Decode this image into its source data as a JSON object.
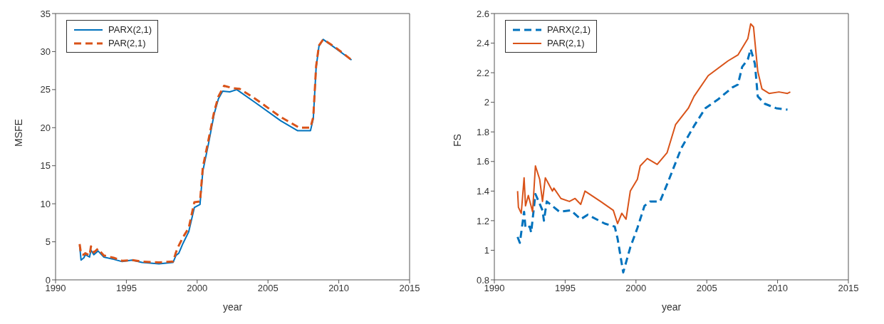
{
  "chart_data": [
    {
      "type": "line",
      "xlabel": "year",
      "ylabel": "MSFE",
      "xlim": [
        1990,
        2015
      ],
      "xticks": [
        1990,
        1995,
        2000,
        2005,
        2010,
        2015
      ],
      "ylim": [
        0,
        35
      ],
      "yticks": [
        0,
        5,
        10,
        15,
        20,
        25,
        30,
        35
      ],
      "legend": "top left",
      "series": [
        {
          "name": "PARX(2,1)",
          "color": "#0072bd",
          "line_style": "solid",
          "x": [
            1991.7,
            1991.8,
            1992.0,
            1992.1,
            1992.4,
            1992.5,
            1992.7,
            1993.0,
            1993.4,
            1994.1,
            1994.7,
            1995.4,
            1996.1,
            1997.3,
            1998.3,
            1998.5,
            1998.7,
            1999.0,
            1999.4,
            1999.8,
            2000.2,
            2000.4,
            2000.8,
            2001.2,
            2001.5,
            2001.8,
            2002.3,
            2002.8,
            2004.1,
            2005.9,
            2007.1,
            2008.0,
            2008.2,
            2008.4,
            2008.6,
            2008.9,
            2009.8,
            2010.9
          ],
          "values": [
            4.5,
            2.6,
            2.9,
            3.3,
            3.0,
            3.9,
            3.3,
            3.8,
            3.0,
            2.7,
            2.4,
            2.6,
            2.3,
            2.1,
            2.3,
            3.2,
            3.5,
            4.8,
            6.3,
            9.5,
            9.9,
            14.3,
            17.9,
            21.8,
            23.8,
            24.8,
            24.7,
            25.0,
            23.3,
            20.9,
            19.6,
            19.6,
            21.2,
            27.9,
            30.7,
            31.6,
            30.4,
            28.9
          ]
        },
        {
          "name": "PAR(2,1)",
          "color": "#d95319",
          "line_style": "dashed",
          "x": [
            1991.7,
            1991.8,
            1992.0,
            1992.1,
            1992.4,
            1992.5,
            1992.7,
            1993.0,
            1993.4,
            1994.1,
            1994.7,
            1995.4,
            1996.1,
            1997.3,
            1998.3,
            1998.5,
            1998.7,
            1999.0,
            1999.4,
            1999.8,
            2000.2,
            2000.4,
            2000.8,
            2001.2,
            2001.5,
            2001.9,
            2002.5,
            2003.0,
            2004.1,
            2005.9,
            2007.2,
            2008.0,
            2008.2,
            2008.4,
            2008.6,
            2008.9,
            2009.8,
            2010.9
          ],
          "values": [
            4.7,
            3.4,
            3.3,
            3.5,
            3.2,
            4.4,
            3.6,
            4.1,
            3.2,
            2.9,
            2.5,
            2.6,
            2.4,
            2.3,
            2.4,
            3.6,
            4.5,
            5.6,
            6.8,
            10.2,
            10.3,
            14.8,
            18.4,
            22.1,
            24.1,
            25.5,
            25.2,
            25.1,
            23.8,
            21.4,
            20.0,
            20.0,
            21.4,
            28.1,
            30.8,
            31.6,
            30.5,
            28.9
          ]
        }
      ]
    },
    {
      "type": "line",
      "xlabel": "year",
      "ylabel": "FS",
      "xlim": [
        1990,
        2015
      ],
      "xticks": [
        1990,
        1995,
        2000,
        2005,
        2010,
        2015
      ],
      "ylim": [
        0.8,
        2.6
      ],
      "yticks": [
        0.8,
        1,
        1.2,
        1.4,
        1.6,
        1.8,
        2,
        2.2,
        2.4,
        2.6
      ],
      "legend": "top left",
      "series": [
        {
          "name": "PARX(2,1)",
          "color": "#0072bd",
          "line_style": "dashed",
          "x": [
            1991.64,
            1991.8,
            1992.1,
            1992.2,
            1992.5,
            1992.6,
            1992.9,
            1993.4,
            1993.5,
            1993.7,
            1994.6,
            1995.4,
            1996.1,
            1996.6,
            1997.8,
            1998.5,
            1998.7,
            1999.1,
            1999.6,
            2000.1,
            2000.6,
            2001.0,
            2001.7,
            2002.3,
            2003.2,
            2004.1,
            2004.9,
            2005.8,
            2006.8,
            2007.2,
            2007.5,
            2007.9,
            2008.1,
            2008.4,
            2008.6,
            2009.1,
            2009.9,
            2010.7
          ],
          "values": [
            1.09,
            1.05,
            1.26,
            1.15,
            1.16,
            1.12,
            1.38,
            1.27,
            1.2,
            1.33,
            1.26,
            1.27,
            1.21,
            1.24,
            1.18,
            1.16,
            1.08,
            0.85,
            1.02,
            1.15,
            1.3,
            1.33,
            1.33,
            1.47,
            1.69,
            1.84,
            1.96,
            2.02,
            2.1,
            2.12,
            2.24,
            2.29,
            2.36,
            2.26,
            2.04,
            1.99,
            1.96,
            1.95
          ]
        },
        {
          "name": "PAR(2,1)",
          "color": "#d95319",
          "line_style": "solid",
          "x": [
            1991.64,
            1991.7,
            1991.9,
            1992.1,
            1992.2,
            1992.4,
            1992.7,
            1992.9,
            1993.2,
            1993.4,
            1993.6,
            1994.1,
            1994.2,
            1994.7,
            1995.3,
            1995.7,
            1996.1,
            1996.4,
            1997.5,
            1998.4,
            1998.7,
            1999.0,
            1999.3,
            1999.6,
            2000.1,
            2000.3,
            2000.8,
            2001.5,
            2002.2,
            2002.8,
            2003.7,
            2004.1,
            2005.1,
            2006.5,
            2007.2,
            2007.9,
            2008.1,
            2008.3,
            2008.6,
            2008.9,
            2009.4,
            2010.1,
            2010.7,
            2010.9
          ],
          "values": [
            1.4,
            1.29,
            1.25,
            1.49,
            1.3,
            1.37,
            1.26,
            1.57,
            1.48,
            1.33,
            1.49,
            1.4,
            1.42,
            1.35,
            1.33,
            1.35,
            1.31,
            1.4,
            1.33,
            1.27,
            1.18,
            1.25,
            1.21,
            1.4,
            1.48,
            1.57,
            1.62,
            1.58,
            1.66,
            1.85,
            1.96,
            2.04,
            2.18,
            2.28,
            2.32,
            2.43,
            2.53,
            2.51,
            2.21,
            2.09,
            2.06,
            2.07,
            2.06,
            2.07
          ]
        }
      ]
    }
  ]
}
